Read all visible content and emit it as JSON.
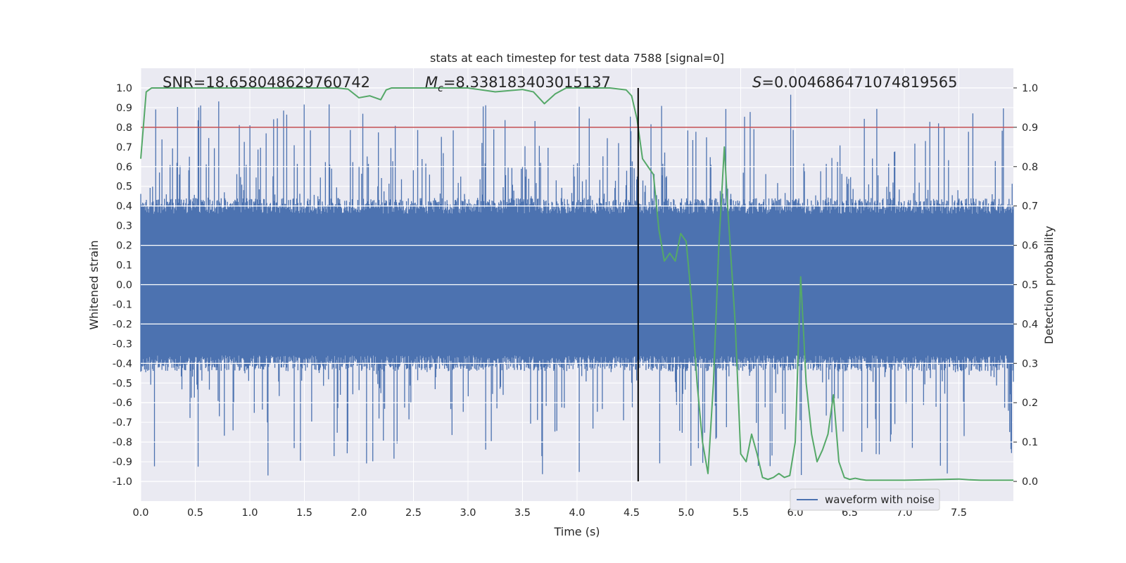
{
  "chart_data": {
    "type": "line",
    "title": "stats at each timestep for test data 7588 [signal=0]",
    "xlabel": "Time (s)",
    "ylabel": "Whitened strain",
    "ylabel_right": "Detection probability",
    "xlim": [
      0.0,
      8.0
    ],
    "ylim": [
      -1.1,
      1.1
    ],
    "ylim_right": [
      -0.05,
      1.05
    ],
    "x_ticks": [
      "0.0",
      "0.5",
      "1.0",
      "1.5",
      "2.0",
      "2.5",
      "3.0",
      "3.5",
      "4.0",
      "4.5",
      "5.0",
      "5.5",
      "6.0",
      "6.5",
      "7.0",
      "7.5"
    ],
    "y_ticks": [
      "1.0",
      "0.9",
      "0.8",
      "0.7",
      "0.6",
      "0.5",
      "0.4",
      "0.3",
      "0.2",
      "0.1",
      "0.0",
      "-0.1",
      "-0.2",
      "-0.3",
      "-0.4",
      "-0.5",
      "-0.6",
      "-0.7",
      "-0.8",
      "-0.9",
      "-1.0"
    ],
    "y_ticks_right": [
      "1.0",
      "0.9",
      "0.8",
      "0.7",
      "0.6",
      "0.5",
      "0.4",
      "0.3",
      "0.2",
      "0.1",
      "0.0"
    ],
    "grid": true,
    "legend_placement": "lower-center",
    "annotations": {
      "snr": "SNR=18.658048629760742",
      "mc_symbol": "M",
      "mc_sub": "c",
      "mc_value": "=8.338183403015137",
      "s_symbol": "S",
      "s_value": "=0.004686471074819565"
    },
    "vertical_line_x": 4.56,
    "threshold_line_right": 0.9,
    "colors": {
      "strain": "#4c72b0",
      "probability": "#55a868",
      "threshold": "#c44e52",
      "marker": "#000000",
      "background": "#eaeaf2"
    },
    "series": [
      {
        "name": "waveform with noise",
        "axis": "left",
        "description_values": {
          "typical_amplitude": 0.4,
          "max_peak": 1.0,
          "min_peak": -0.97
        }
      },
      {
        "axis": "right",
        "x": [
          0.0,
          0.05,
          0.1,
          0.2,
          0.5,
          1.0,
          1.5,
          1.8,
          1.9,
          2.0,
          2.1,
          2.2,
          2.25,
          2.3,
          2.5,
          3.0,
          3.25,
          3.5,
          3.6,
          3.7,
          3.8,
          3.9,
          4.0,
          4.3,
          4.45,
          4.5,
          4.55,
          4.6,
          4.65,
          4.7,
          4.75,
          4.8,
          4.85,
          4.9,
          4.95,
          5.0,
          5.05,
          5.1,
          5.15,
          5.2,
          5.25,
          5.3,
          5.35,
          5.38,
          5.45,
          5.5,
          5.55,
          5.6,
          5.65,
          5.7,
          5.75,
          5.8,
          5.85,
          5.9,
          5.95,
          6.0,
          6.05,
          6.1,
          6.15,
          6.2,
          6.25,
          6.3,
          6.35,
          6.4,
          6.45,
          6.5,
          6.55,
          6.6,
          6.65,
          6.7,
          6.8,
          7.0,
          7.2,
          7.5,
          7.6,
          7.7,
          8.0
        ],
        "values": [
          0.82,
          0.99,
          1.0,
          1.0,
          1.0,
          1.0,
          1.0,
          1.0,
          0.997,
          0.975,
          0.98,
          0.97,
          0.995,
          1.0,
          1.0,
          1.0,
          0.99,
          0.996,
          0.99,
          0.96,
          0.985,
          1.0,
          1.0,
          1.0,
          0.995,
          0.98,
          0.92,
          0.82,
          0.8,
          0.78,
          0.64,
          0.56,
          0.58,
          0.56,
          0.63,
          0.61,
          0.46,
          0.25,
          0.1,
          0.02,
          0.25,
          0.6,
          0.85,
          0.7,
          0.4,
          0.07,
          0.05,
          0.12,
          0.07,
          0.01,
          0.005,
          0.01,
          0.02,
          0.01,
          0.015,
          0.1,
          0.52,
          0.25,
          0.12,
          0.05,
          0.08,
          0.12,
          0.22,
          0.05,
          0.01,
          0.005,
          0.008,
          0.005,
          0.003,
          0.003,
          0.003,
          0.003,
          0.004,
          0.006,
          0.004,
          0.003,
          0.003
        ]
      }
    ]
  },
  "legend": {
    "label": "waveform with noise"
  }
}
